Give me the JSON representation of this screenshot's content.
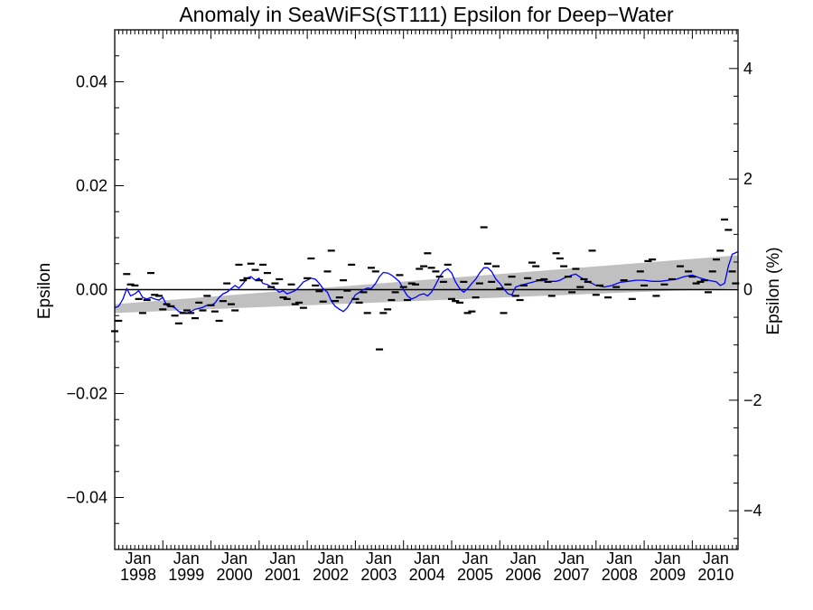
{
  "chart_data": {
    "type": "scatter",
    "title": "Anomaly in SeaWiFS(ST111) Epsilon for Deep−Water",
    "ylabel": "Epsilon",
    "y2label": "Epsilon (%)",
    "xlim": [
      1998.0,
      2010.95
    ],
    "ylim": [
      -0.05,
      0.05
    ],
    "y2lim": [
      -4.7,
      4.7
    ],
    "y_ticks": [
      -0.04,
      -0.02,
      0.0,
      0.02,
      0.04
    ],
    "y_tick_labels": [
      "−0.04",
      "−0.02",
      "0.00",
      "0.02",
      "0.04"
    ],
    "y2_ticks": [
      -4,
      -2,
      0,
      2,
      4
    ],
    "y2_tick_labels": [
      "−4",
      "−2",
      "0",
      "2",
      "4"
    ],
    "x_ticks": [
      1998,
      1999,
      2000,
      2001,
      2002,
      2003,
      2004,
      2005,
      2006,
      2007,
      2008,
      2009,
      2010
    ],
    "x_tick_month_label": "Jan",
    "x_tick_year_labels": [
      "1998",
      "1999",
      "2000",
      "2001",
      "2002",
      "2003",
      "2004",
      "2005",
      "2006",
      "2007",
      "2008",
      "2009",
      "2010"
    ],
    "zero_line": 0.0,
    "grid": false,
    "legend": "none",
    "colors": {
      "points": "#000000",
      "smoothed_line": "#0000ff",
      "trend_band": "#c0c0c0",
      "zero_line": "#000000"
    },
    "trend_band": {
      "x": [
        1998.0,
        2010.95
      ],
      "lower": [
        -0.0045,
        0.0003
      ],
      "upper": [
        -0.0028,
        0.0066
      ]
    },
    "series": [
      {
        "kind": "points",
        "x": [
          1998.0,
          1998.08,
          1998.25,
          1998.33,
          1998.42,
          1998.5,
          1998.58,
          1998.67,
          1998.75,
          1998.83,
          1998.92,
          1999.0,
          1999.08,
          1999.17,
          1999.25,
          1999.33,
          1999.42,
          1999.5,
          1999.58,
          1999.67,
          1999.75,
          1999.83,
          1999.92,
          2000.0,
          2000.08,
          2000.17,
          2000.25,
          2000.33,
          2000.42,
          2000.5,
          2000.58,
          2000.67,
          2000.75,
          2000.83,
          2000.92,
          2001.0,
          2001.08,
          2001.17,
          2001.25,
          2001.33,
          2001.42,
          2001.5,
          2001.58,
          2001.67,
          2001.75,
          2001.83,
          2001.92,
          2002.0,
          2002.08,
          2002.17,
          2002.25,
          2002.33,
          2002.42,
          2002.5,
          2002.58,
          2002.67,
          2002.75,
          2002.83,
          2002.92,
          2003.0,
          2003.08,
          2003.17,
          2003.25,
          2003.33,
          2003.42,
          2003.5,
          2003.58,
          2003.67,
          2003.75,
          2003.83,
          2003.92,
          2004.0,
          2004.08,
          2004.17,
          2004.25,
          2004.33,
          2004.42,
          2004.5,
          2004.58,
          2004.67,
          2004.75,
          2004.83,
          2004.92,
          2005.0,
          2005.08,
          2005.17,
          2005.25,
          2005.33,
          2005.42,
          2005.5,
          2005.58,
          2005.67,
          2005.75,
          2005.83,
          2005.92,
          2006.0,
          2006.08,
          2006.17,
          2006.25,
          2006.33,
          2006.42,
          2006.5,
          2006.58,
          2006.67,
          2006.75,
          2006.83,
          2006.92,
          2007.0,
          2007.08,
          2007.17,
          2007.25,
          2007.33,
          2007.42,
          2007.5,
          2007.58,
          2007.67,
          2007.75,
          2007.83,
          2007.92,
          2008.0,
          2008.08,
          2008.25,
          2008.42,
          2008.58,
          2008.75,
          2008.92,
          2009.0,
          2009.08,
          2009.17,
          2009.25,
          2009.42,
          2009.58,
          2009.75,
          2009.92,
          2010.0,
          2010.08,
          2010.17,
          2010.25,
          2010.33,
          2010.42,
          2010.5,
          2010.58,
          2010.67,
          2010.75,
          2010.83,
          2010.9
        ],
        "y": [
          -0.008,
          -0.006,
          0.003,
          0.001,
          0.0008,
          -0.0018,
          -0.0045,
          -0.002,
          0.0032,
          -0.001,
          -0.0012,
          -0.0038,
          -0.0028,
          -0.0032,
          -0.005,
          -0.0065,
          -0.0045,
          -0.004,
          -0.0045,
          -0.0055,
          -0.0025,
          -0.004,
          -0.0012,
          -0.003,
          -0.0042,
          -0.006,
          -0.0022,
          0.0012,
          -0.0028,
          -0.004,
          0.0048,
          0.0018,
          0.0022,
          0.005,
          0.0038,
          0.0018,
          0.0048,
          0.0032,
          0.0005,
          0.0012,
          0.002,
          -0.0015,
          -0.0018,
          0.001,
          -0.0028,
          -0.0025,
          -0.0035,
          0.0022,
          0.006,
          0.0008,
          -0.0003,
          -0.0023,
          0.0035,
          0.0075,
          -0.0022,
          -0.0015,
          0.0018,
          -0.0002,
          0.0048,
          -0.0018,
          -0.0025,
          -0.0005,
          -0.0045,
          0.0042,
          0.0035,
          -0.0115,
          -0.0045,
          -0.0038,
          -0.002,
          -0.0005,
          0.0028,
          0.0005,
          -0.002,
          0.0012,
          0.001,
          0.004,
          0.0045,
          0.007,
          0.0042,
          0.0035,
          0.0025,
          0.0015,
          0.0048,
          -0.0018,
          -0.0022,
          -0.0025,
          0.0015,
          -0.0045,
          -0.0042,
          -0.0015,
          0.0012,
          0.012,
          0.005,
          0.0015,
          0.0045,
          0.0002,
          -0.0045,
          0.001,
          0.0025,
          -0.0012,
          -0.002,
          0.0008,
          0.0022,
          0.0052,
          0.0045,
          0.0018,
          0.002,
          0.0015,
          -0.0012,
          0.007,
          0.006,
          0.0045,
          0.0025,
          -0.0005,
          0.004,
          0.0005,
          0.002,
          0.0015,
          0.0075,
          -0.001,
          0.0008,
          -0.0015,
          0.0005,
          0.0018,
          -0.0018,
          0.0035,
          0.0008,
          0.0055,
          0.0058,
          -0.0012,
          0.001,
          0.002,
          0.0045,
          0.0035,
          0.0025,
          0.0012,
          0.0015,
          0.0018,
          -0.0005,
          0.0035,
          0.0058,
          0.0075,
          0.0135,
          0.0115,
          0.0035,
          0.0012
        ]
      },
      {
        "kind": "line",
        "name": "",
        "x": [
          1998.0,
          1998.08,
          1998.17,
          1998.25,
          1998.33,
          1998.42,
          1998.5,
          1998.58,
          1998.67,
          1998.75,
          1998.83,
          1998.92,
          1999.0,
          1999.08,
          1999.17,
          1999.25,
          1999.33,
          1999.42,
          1999.5,
          1999.58,
          1999.67,
          1999.75,
          1999.83,
          1999.92,
          2000.0,
          2000.08,
          2000.17,
          2000.25,
          2000.33,
          2000.42,
          2000.5,
          2000.58,
          2000.67,
          2000.75,
          2000.83,
          2000.92,
          2001.0,
          2001.08,
          2001.17,
          2001.25,
          2001.33,
          2001.42,
          2001.5,
          2001.58,
          2001.67,
          2001.75,
          2001.83,
          2001.92,
          2002.0,
          2002.08,
          2002.17,
          2002.25,
          2002.33,
          2002.42,
          2002.5,
          2002.58,
          2002.67,
          2002.75,
          2002.83,
          2002.92,
          2003.0,
          2003.08,
          2003.17,
          2003.25,
          2003.33,
          2003.42,
          2003.5,
          2003.58,
          2003.67,
          2003.75,
          2003.83,
          2003.92,
          2004.0,
          2004.08,
          2004.17,
          2004.25,
          2004.33,
          2004.42,
          2004.5,
          2004.58,
          2004.67,
          2004.75,
          2004.83,
          2004.92,
          2005.0,
          2005.08,
          2005.17,
          2005.25,
          2005.33,
          2005.42,
          2005.5,
          2005.58,
          2005.67,
          2005.75,
          2005.83,
          2005.92,
          2006.0,
          2006.08,
          2006.17,
          2006.25,
          2006.33,
          2006.42,
          2006.5,
          2006.58,
          2006.67,
          2006.75,
          2006.83,
          2006.92,
          2007.0,
          2007.08,
          2007.17,
          2007.25,
          2007.33,
          2007.42,
          2007.5,
          2007.58,
          2007.67,
          2007.75,
          2007.83,
          2007.92,
          2008.0,
          2008.17,
          2008.33,
          2008.5,
          2008.67,
          2008.83,
          2009.0,
          2009.17,
          2009.33,
          2009.5,
          2009.67,
          2009.83,
          2010.0,
          2010.17,
          2010.33,
          2010.5,
          2010.58,
          2010.67,
          2010.75,
          2010.83,
          2010.95
        ],
        "y": [
          -0.0035,
          -0.0032,
          -0.0018,
          0.0002,
          -0.0012,
          -0.0008,
          -0.0002,
          -0.0015,
          -0.0018,
          -0.0015,
          -0.0018,
          -0.002,
          -0.0015,
          -0.003,
          -0.0032,
          -0.0035,
          -0.0042,
          -0.0044,
          -0.0046,
          -0.0042,
          -0.0038,
          -0.0036,
          -0.0034,
          -0.003,
          -0.003,
          -0.0026,
          -0.0015,
          -0.0008,
          -0.0005,
          0.0002,
          0.0008,
          0.0003,
          0.0012,
          0.0022,
          0.0025,
          0.0018,
          0.0022,
          0.0012,
          0.001,
          0.0005,
          0.0002,
          -0.0005,
          -0.0002,
          -0.0008,
          -0.0005,
          -0.0002,
          0.0005,
          0.0015,
          0.0018,
          0.0022,
          0.002,
          0.0012,
          0.0002,
          -0.0005,
          -0.0022,
          -0.0032,
          -0.0038,
          -0.0042,
          -0.0035,
          -0.0022,
          -0.001,
          -0.0005,
          0.0,
          0.0003,
          0.0002,
          0.0012,
          0.0025,
          0.0033,
          0.0032,
          0.0028,
          0.0022,
          0.0015,
          0.0,
          -0.0012,
          -0.0018,
          -0.0015,
          -0.001,
          -0.0008,
          -0.0012,
          -0.0005,
          0.001,
          0.0025,
          0.0035,
          0.004,
          0.0032,
          0.0015,
          0.0002,
          -0.0005,
          0.0002,
          0.0012,
          0.002,
          0.0032,
          0.0042,
          0.0042,
          0.0035,
          0.002,
          0.0012,
          0.0002,
          -0.0008,
          -0.001,
          0.0005,
          0.0008,
          0.001,
          0.0012,
          0.0014,
          0.0016,
          0.0018,
          0.0018,
          0.0015,
          0.0016,
          0.0016,
          0.0018,
          0.0022,
          0.0025,
          0.0028,
          0.003,
          0.0024,
          0.002,
          0.0015,
          0.0012,
          0.0008,
          0.0005,
          0.0008,
          0.0014,
          0.0016,
          0.0018,
          0.0018,
          0.0016,
          0.0016,
          0.0018,
          0.002,
          0.0025,
          0.0028,
          0.0022,
          0.0018,
          0.0015,
          0.0008,
          0.0012,
          0.0045,
          0.0068,
          0.0073
        ]
      }
    ]
  }
}
